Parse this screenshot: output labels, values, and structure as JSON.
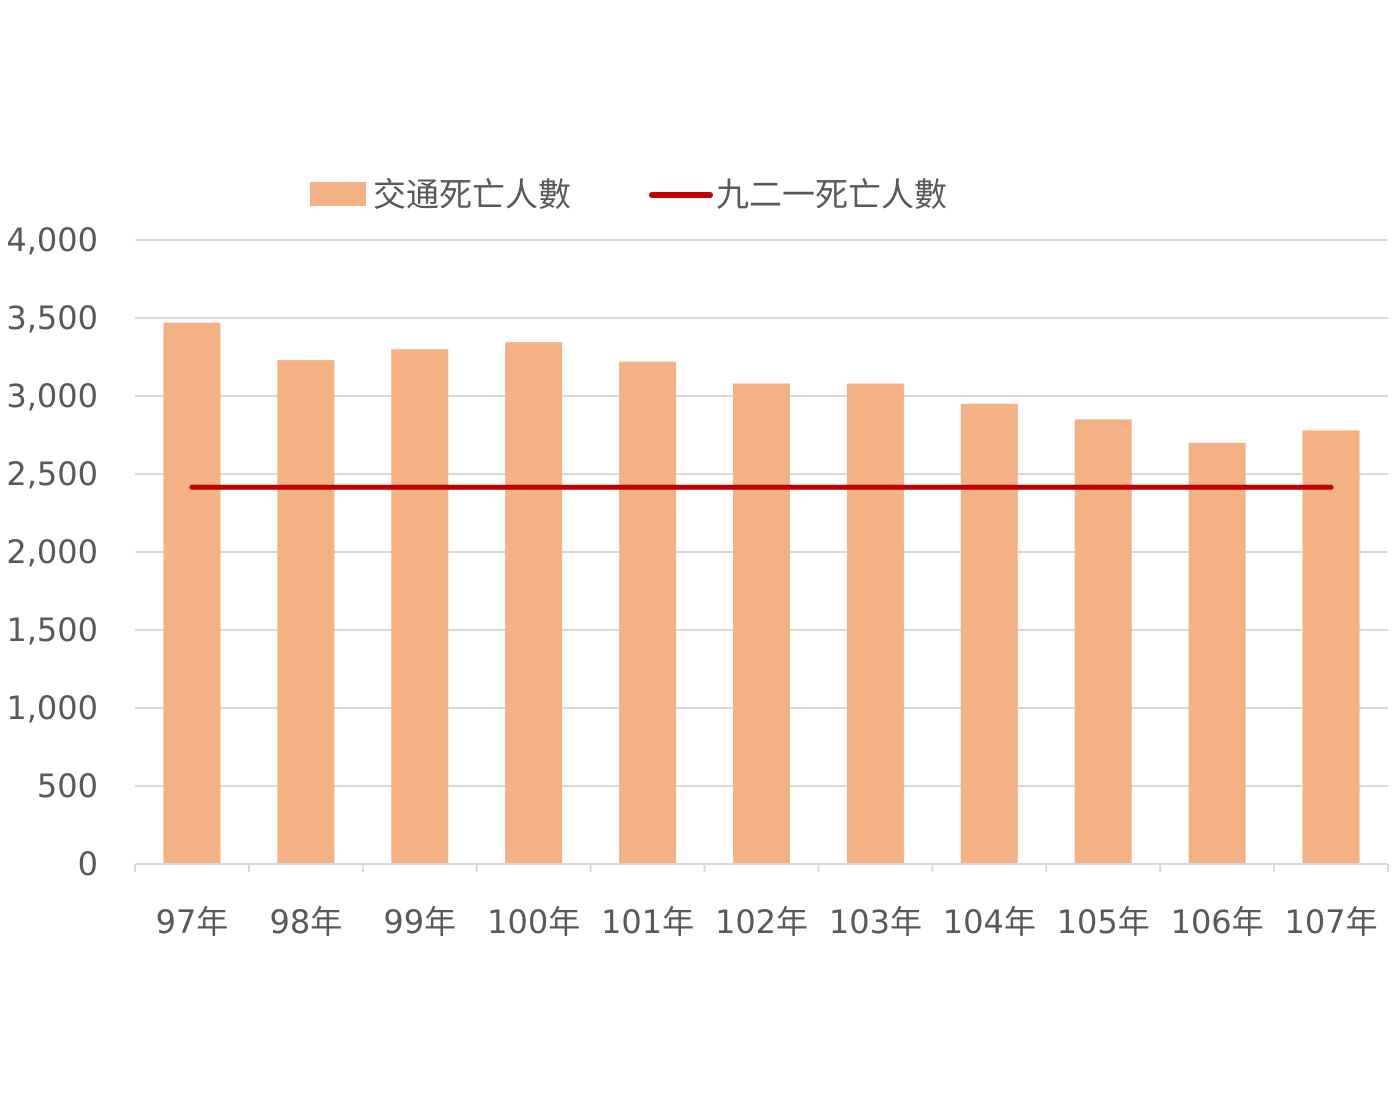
{
  "chart_data": {
    "type": "bar",
    "categories": [
      "97年",
      "98年",
      "99年",
      "100年",
      "101年",
      "102年",
      "103年",
      "104年",
      "105年",
      "106年",
      "107年"
    ],
    "series": [
      {
        "name": "交通死亡人數",
        "type": "bar",
        "color": "#f4b183",
        "values": [
          3470,
          3230,
          3300,
          3345,
          3220,
          3080,
          3080,
          2950,
          2850,
          2700,
          2780
        ]
      },
      {
        "name": "九二一死亡人數",
        "type": "line",
        "color": "#c00000",
        "values": [
          2415,
          2415,
          2415,
          2415,
          2415,
          2415,
          2415,
          2415,
          2415,
          2415,
          2415
        ]
      }
    ],
    "yticks": [
      "0",
      "500",
      "1,000",
      "1,500",
      "2,000",
      "2,500",
      "3,000",
      "3,500",
      "4,000"
    ],
    "ylim": [
      0,
      4000
    ],
    "ystep": 500,
    "grid": true,
    "legend_position": "top-center",
    "gridline_color": "#d9d9d9"
  }
}
